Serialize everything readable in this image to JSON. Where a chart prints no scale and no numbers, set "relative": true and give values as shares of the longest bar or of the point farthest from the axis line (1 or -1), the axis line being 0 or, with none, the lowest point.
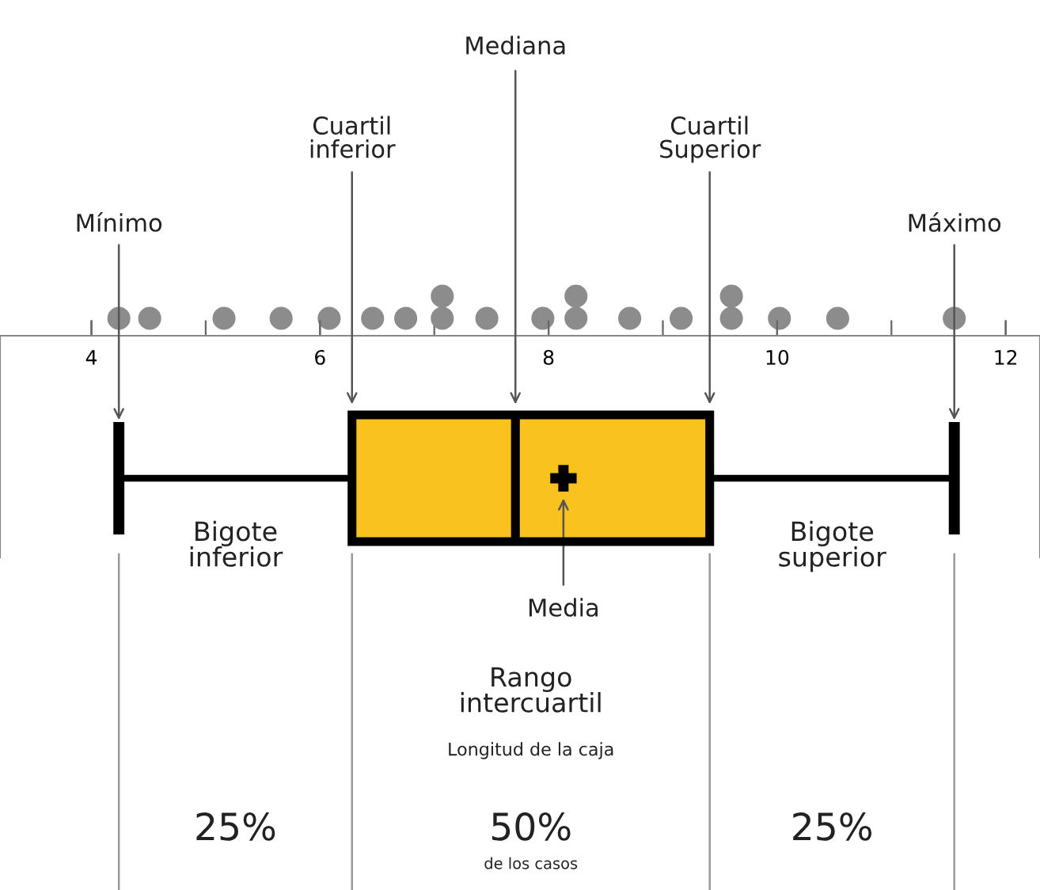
{
  "chart_data": [
    {
      "type": "scatter",
      "relative": true,
      "color": "#8c8c8c",
      "marker": "circle",
      "tick_labels": false,
      "xlim": [
        3.2,
        12.3
      ],
      "xticks": [
        4,
        {
          "value": 5,
          "label": null
        },
        6,
        {
          "value": 7,
          "label": null
        },
        8,
        {
          "value": 9,
          "label": null
        },
        10,
        {
          "value": 11,
          "label": null
        },
        12
      ],
      "x": [
        4.24,
        4.51,
        5.16,
        5.66,
        6.08,
        6.46,
        6.75,
        7.07,
        7.07,
        7.46,
        7.95,
        8.24,
        8.24,
        8.71,
        9.16,
        9.6,
        9.6,
        10.02,
        10.53,
        11.55
      ],
      "values": [
        0.44,
        0.44,
        0.44,
        0.44,
        0.44,
        0.44,
        0.44,
        0.44,
        1,
        0.44,
        0.44,
        0.44,
        1,
        0.44,
        0.44,
        0.44,
        1,
        0.44,
        0.44,
        0.44
      ]
    },
    {
      "type": "box",
      "orientation": "horizontal",
      "tick_labels": "x",
      "categories": [
        null
      ],
      "xlim": [
        3.2,
        12.3
      ],
      "xticks": [
        4,
        6,
        8,
        10,
        12
      ],
      "colors": [
        "#f9c21f"
      ],
      "boxes": [
        {
          "low": 4.24,
          "q1": 6.28,
          "median": 7.71,
          "q3": 9.41,
          "high": 11.55,
          "mean": 8.13
        }
      ],
      "annotations": [
        "Mediana",
        "Cuartil\ninferior",
        "Cuartil\nSuperior",
        "Mínimo",
        "Máximo",
        "Bigote\ninferior",
        "Bigote\nsuperior",
        "Media",
        "Rango\nintercuartil",
        "Longitud de la caja",
        "25%",
        "50%",
        "de los casos",
        "25%"
      ]
    }
  ]
}
